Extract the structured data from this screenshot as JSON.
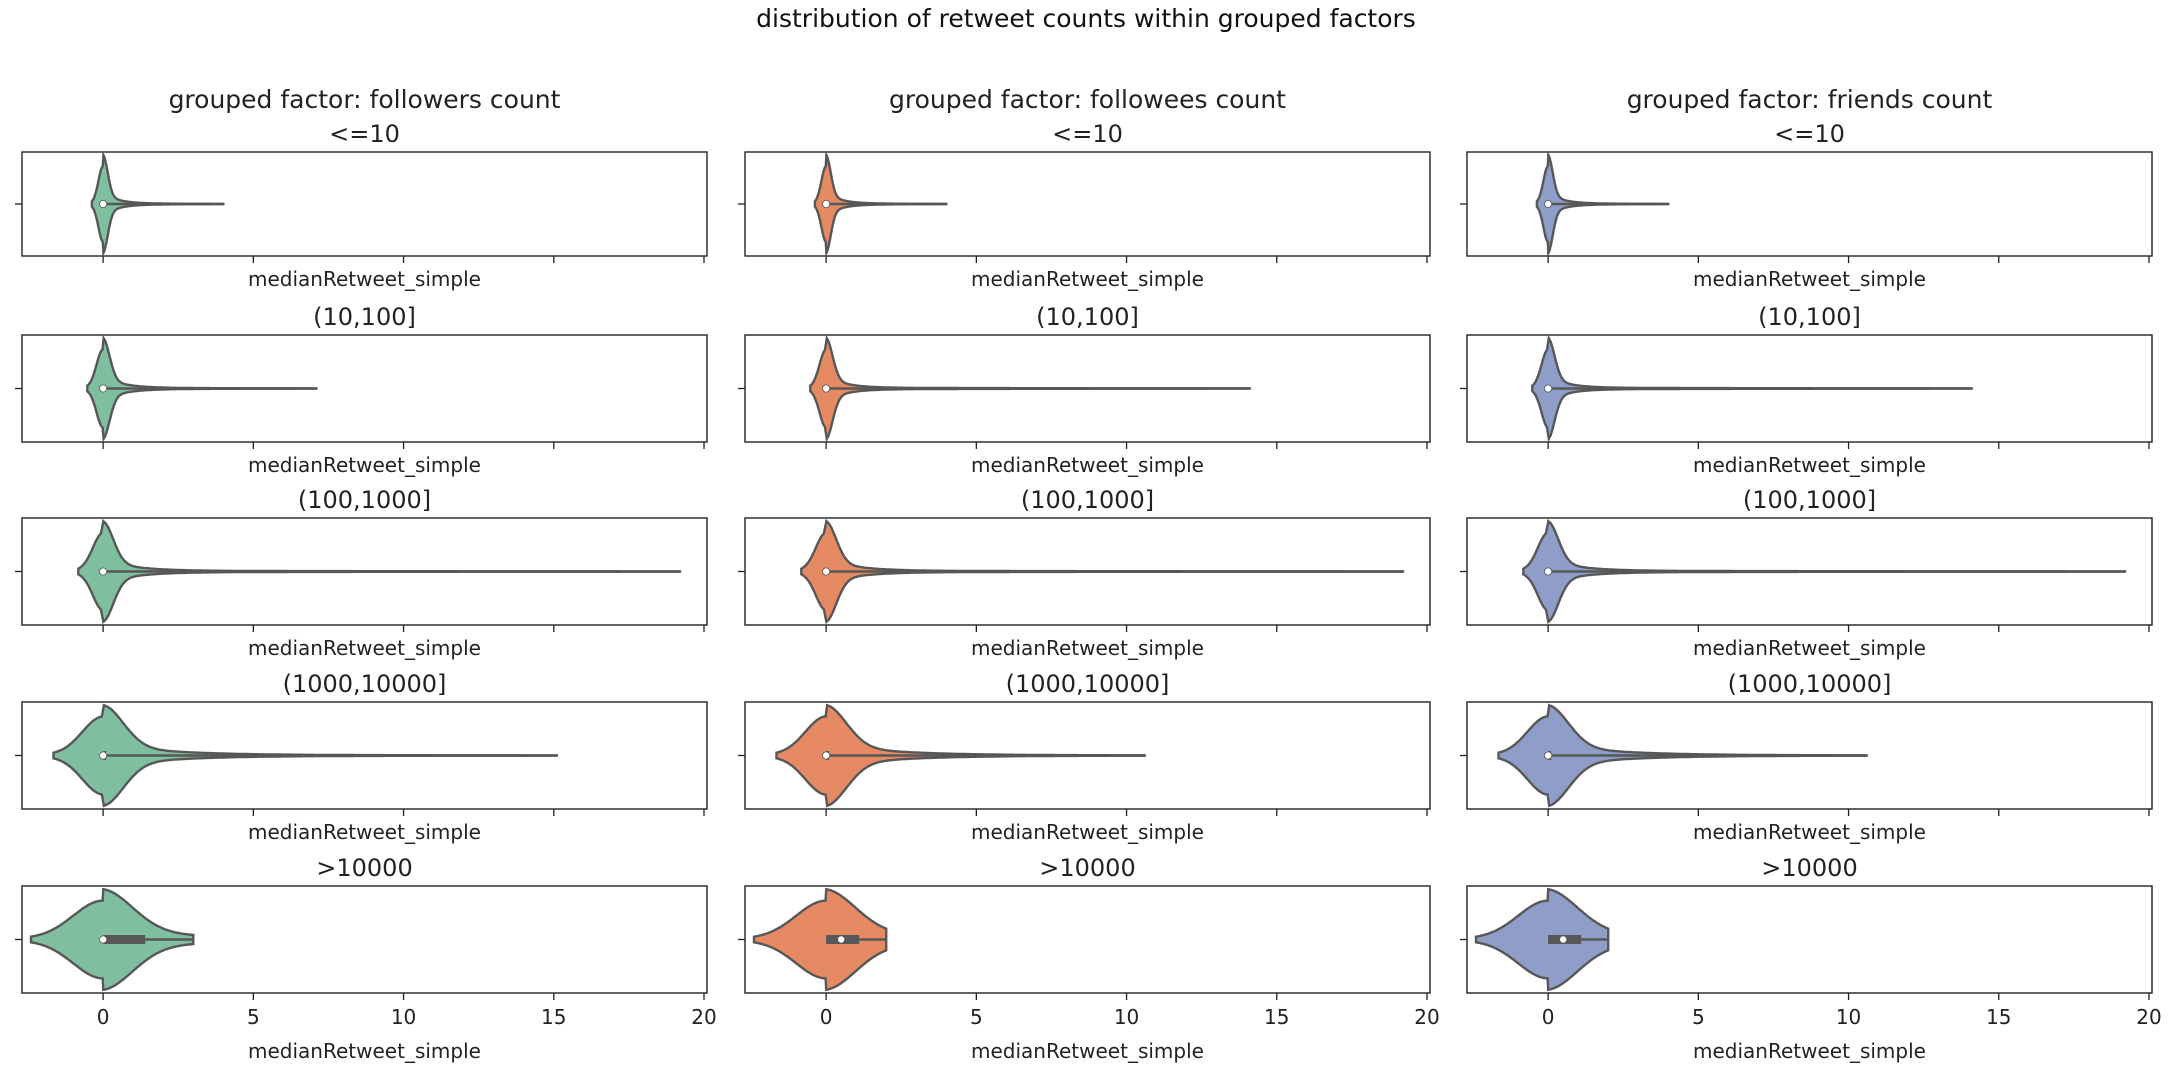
{
  "title": "distribution of retweet counts within grouped factors",
  "colors": {
    "followers": "#7fbf9f",
    "followees": "#e68a64",
    "friends": "#8f9ec9",
    "line": "#575757",
    "axes": "#222222"
  },
  "chart_data": {
    "type": "violin",
    "orientation": "horizontal",
    "xlabel": "medianRetweet_simple",
    "xticks": [
      0,
      5,
      10,
      15,
      20
    ],
    "xlim": [
      -2.7,
      20.1
    ],
    "grid": false,
    "columns": [
      {
        "key": "followers",
        "title": "grouped factor: followers count",
        "color": "#7fbf9f",
        "panels": [
          {
            "group": "<=10",
            "min": 0,
            "max": 4.0,
            "q1": 0,
            "median": 0,
            "q3": 0,
            "spread": 0.25
          },
          {
            "group": "(10,100]",
            "min": 0,
            "max": 7.1,
            "q1": 0,
            "median": 0,
            "q3": 0,
            "spread": 0.35
          },
          {
            "group": "(100,1000]",
            "min": 0,
            "max": 19.2,
            "q1": 0,
            "median": 0,
            "q3": 0,
            "spread": 0.55
          },
          {
            "group": "(1000,10000]",
            "min": 0,
            "max": 15.1,
            "q1": 0,
            "median": 0,
            "q3": 0.1,
            "spread": 1.1
          },
          {
            "group": ">10000",
            "min": 0,
            "max": 3.0,
            "q1": 0,
            "median": 0,
            "q3": 1.4,
            "spread": 1.6
          }
        ]
      },
      {
        "key": "followees",
        "title": "grouped factor: followees count",
        "color": "#e68a64",
        "panels": [
          {
            "group": "<=10",
            "min": 0,
            "max": 4.0,
            "q1": 0,
            "median": 0,
            "q3": 0,
            "spread": 0.25
          },
          {
            "group": "(10,100]",
            "min": 0,
            "max": 14.1,
            "q1": 0,
            "median": 0,
            "q3": 0,
            "spread": 0.35
          },
          {
            "group": "(100,1000]",
            "min": 0,
            "max": 19.2,
            "q1": 0,
            "median": 0,
            "q3": 0,
            "spread": 0.55
          },
          {
            "group": "(1000,10000]",
            "min": 0,
            "max": 10.6,
            "q1": 0,
            "median": 0,
            "q3": 0.1,
            "spread": 1.1
          },
          {
            "group": ">10000",
            "min": 0,
            "max": 2.0,
            "q1": 0,
            "median": 0.5,
            "q3": 1.1,
            "spread": 1.6
          }
        ]
      },
      {
        "key": "friends",
        "title": "grouped factor: friends count",
        "color": "#8f9ec9",
        "panels": [
          {
            "group": "<=10",
            "min": 0,
            "max": 4.0,
            "q1": 0,
            "median": 0,
            "q3": 0,
            "spread": 0.25
          },
          {
            "group": "(10,100]",
            "min": 0,
            "max": 14.1,
            "q1": 0,
            "median": 0,
            "q3": 0,
            "spread": 0.35
          },
          {
            "group": "(100,1000]",
            "min": 0,
            "max": 19.2,
            "q1": 0,
            "median": 0,
            "q3": 0,
            "spread": 0.55
          },
          {
            "group": "(1000,10000]",
            "min": 0,
            "max": 10.6,
            "q1": 0,
            "median": 0,
            "q3": 0.1,
            "spread": 1.1
          },
          {
            "group": ">10000",
            "min": 0,
            "max": 2.0,
            "q1": 0,
            "median": 0.5,
            "q3": 1.1,
            "spread": 1.6
          }
        ]
      }
    ]
  }
}
